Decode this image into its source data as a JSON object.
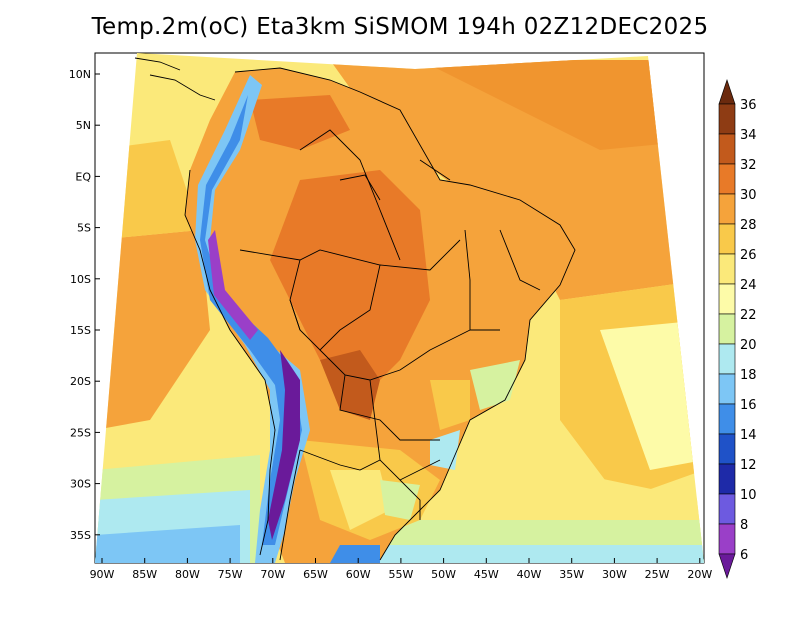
{
  "title": "Temp.2m(oC) Eta3km SiSMOM 194h 02Z12DEC2025",
  "map": {
    "latitude_labels": [
      "10N",
      "5N",
      "EQ",
      "5S",
      "10S",
      "15S",
      "20S",
      "25S",
      "30S",
      "35S"
    ],
    "longitude_labels": [
      "90W",
      "85W",
      "80W",
      "75W",
      "70W",
      "65W",
      "60W",
      "55W",
      "50W",
      "45W",
      "40W",
      "35W",
      "30W",
      "25W",
      "20W"
    ],
    "variable": "2 m air temperature",
    "units": "oC"
  },
  "colorbar": {
    "labels": [
      "36",
      "34",
      "32",
      "30",
      "28",
      "26",
      "24",
      "22",
      "20",
      "18",
      "16",
      "14",
      "12",
      "10",
      "8",
      "6"
    ],
    "colors": [
      "#6b2a0e",
      "#8e3c14",
      "#c25a1c",
      "#e87a28",
      "#f5a33b",
      "#f9c94a",
      "#fbe97a",
      "#fdfba8",
      "#d6f2a0",
      "#aee9f0",
      "#7dc6f5",
      "#3f8ee8",
      "#1f52c8",
      "#1e2aa8",
      "#6d5ae0",
      "#9a3fc8",
      "#6a1a9a"
    ]
  }
}
